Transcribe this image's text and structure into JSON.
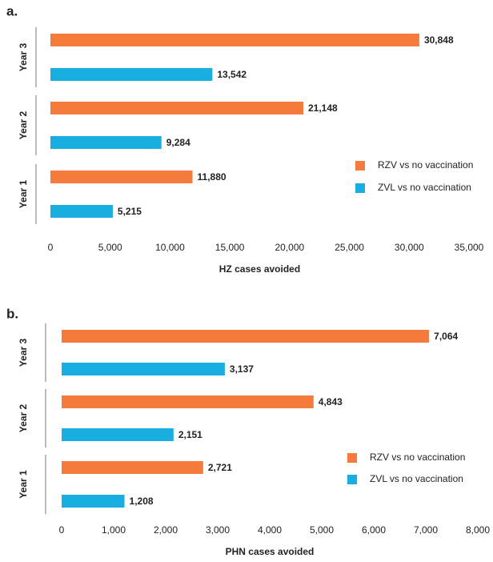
{
  "chart_data": [
    {
      "type": "bar",
      "panel": "a.",
      "orientation": "horizontal",
      "xlabel": "HZ cases avoided",
      "categories": [
        "Year 3",
        "Year 2",
        "Year 1"
      ],
      "series": [
        {
          "name": "RZV vs no vaccination",
          "color": "#f47b3b",
          "values": [
            30848,
            21148,
            11880
          ],
          "value_labels": [
            "30,848",
            "21,148",
            "11,880"
          ]
        },
        {
          "name": "ZVL vs no vaccination",
          "color": "#18afe0",
          "values": [
            13542,
            9284,
            5215
          ],
          "value_labels": [
            "13,542",
            "9,284",
            "5,215"
          ]
        }
      ],
      "xlim": [
        0,
        35000
      ],
      "xticks": [
        0,
        {
          "value": 5000,
          "label": "5,000"
        },
        {
          "value": 10000,
          "label": "10,000"
        },
        {
          "value": 15000,
          "label": "15,000"
        },
        {
          "value": 20000,
          "label": "20,000"
        },
        {
          "value": 25000,
          "label": "25,000"
        },
        {
          "value": 30000,
          "label": "30,000"
        },
        {
          "value": 35000,
          "label": "35,000"
        }
      ],
      "legend": "right"
    },
    {
      "type": "bar",
      "panel": "b.",
      "orientation": "horizontal",
      "xlabel": "PHN cases avoided",
      "categories": [
        "Year 3",
        "Year 2",
        "Year 1"
      ],
      "series": [
        {
          "name": "RZV vs no vaccination",
          "color": "#f47b3b",
          "values": [
            7064,
            4843,
            2721
          ],
          "value_labels": [
            "7,064",
            "4,843",
            "2,721"
          ]
        },
        {
          "name": "ZVL vs no vaccination",
          "color": "#18afe0",
          "values": [
            3137,
            2151,
            1208
          ],
          "value_labels": [
            "3,137",
            "2,151",
            "1,208"
          ]
        }
      ],
      "xlim": [
        0,
        8000
      ],
      "xticks": [
        0,
        {
          "value": 1000,
          "label": "1,000"
        },
        {
          "value": 2000,
          "label": "2,000"
        },
        {
          "value": 3000,
          "label": "3,000"
        },
        {
          "value": 4000,
          "label": "4,000"
        },
        {
          "value": 5000,
          "label": "5,000"
        },
        {
          "value": 6000,
          "label": "6,000"
        },
        {
          "value": 7000,
          "label": "7,000"
        },
        {
          "value": 8000,
          "label": "8,000"
        }
      ],
      "legend": "right"
    }
  ]
}
